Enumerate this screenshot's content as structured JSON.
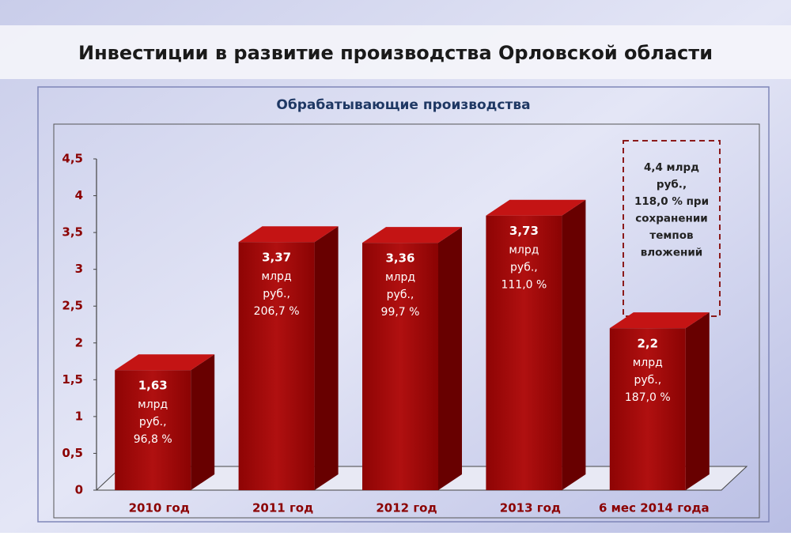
{
  "chart_data": {
    "type": "bar3d",
    "title": "Инвестиции в развитие производства Орловской области",
    "subtitle": "Обрабатывающие производства",
    "categories": [
      "2010 год",
      "2011 год",
      "2012 год",
      "2013 год",
      "6 мес 2014 года"
    ],
    "values": [
      1.63,
      3.37,
      3.36,
      3.73,
      2.2
    ],
    "value_labels": [
      "1,63",
      "3,37",
      "3,36",
      "3,73",
      "2,2"
    ],
    "label_details": [
      [
        "млрд",
        "руб.,",
        "96,8 %"
      ],
      [
        "млрд",
        "руб.,",
        "206,7 %"
      ],
      [
        "млрд",
        "руб.,",
        "99,7 %"
      ],
      [
        "млрд",
        "руб.,",
        "111,0 %"
      ],
      [
        "млрд",
        "руб.,",
        "187,0 %"
      ]
    ],
    "annotation": [
      "4,4 млрд",
      "руб.,",
      "118,0 % при",
      "сохранении",
      "темпов",
      "вложений"
    ],
    "color": "#a30a0a",
    "ylim": [
      0,
      4.5
    ],
    "yticks": [
      0,
      {
        "value": 0.5,
        "label": "0,5"
      },
      1,
      {
        "value": 1.5,
        "label": "1,5"
      },
      2,
      {
        "value": 2.5,
        "label": "2,5"
      },
      3,
      {
        "value": 3.5,
        "label": "3,5"
      },
      4,
      {
        "value": 4.5,
        "label": "4,5"
      }
    ]
  }
}
